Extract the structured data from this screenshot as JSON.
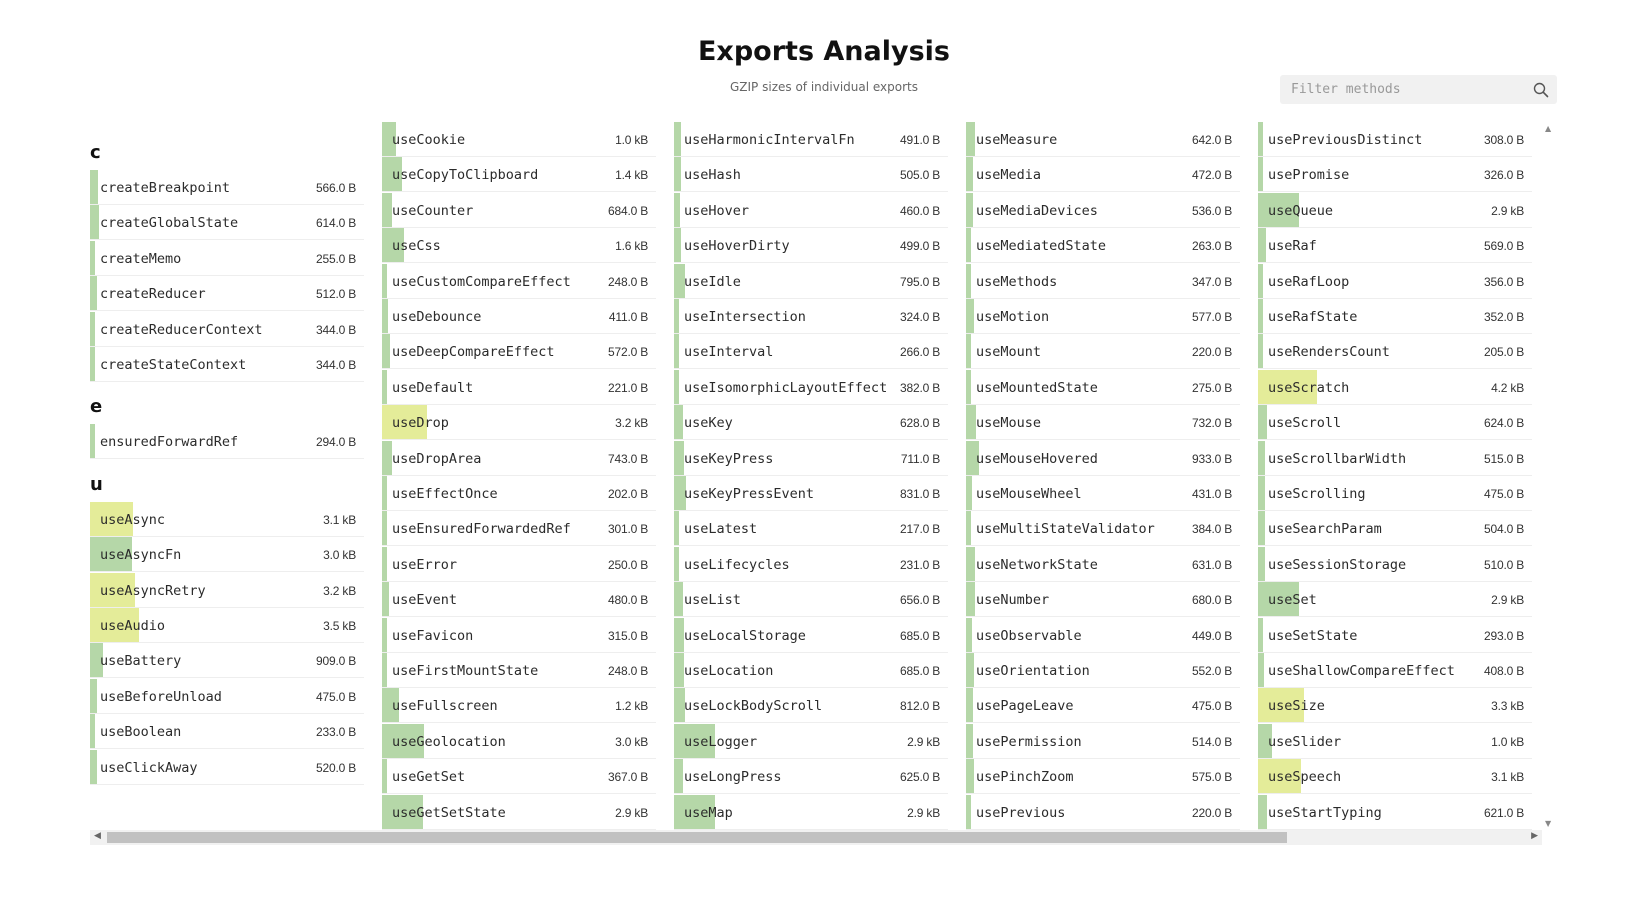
{
  "header": {
    "title": "Exports Analysis",
    "subtitle": "GZIP sizes of individual exports"
  },
  "filter": {
    "placeholder": "Filter methods"
  },
  "colors": {
    "bar_small": "#b5d7a8",
    "bar_large": "#e4ec99",
    "border": "#eeeeee"
  },
  "columns": [
    {
      "groups": [
        {
          "letter": "c",
          "items": [
            {
              "name": "createBreakpoint",
              "size": "566.0 B",
              "bytes": 566
            },
            {
              "name": "createGlobalState",
              "size": "614.0 B",
              "bytes": 614
            },
            {
              "name": "createMemo",
              "size": "255.0 B",
              "bytes": 255
            },
            {
              "name": "createReducer",
              "size": "512.0 B",
              "bytes": 512
            },
            {
              "name": "createReducerContext",
              "size": "344.0 B",
              "bytes": 344
            },
            {
              "name": "createStateContext",
              "size": "344.0 B",
              "bytes": 344
            }
          ]
        },
        {
          "letter": "e",
          "items": [
            {
              "name": "ensuredForwardRef",
              "size": "294.0 B",
              "bytes": 294
            }
          ]
        },
        {
          "letter": "u",
          "items": [
            {
              "name": "useAsync",
              "size": "3.1 kB",
              "bytes": 3100
            },
            {
              "name": "useAsyncFn",
              "size": "3.0 kB",
              "bytes": 3000
            },
            {
              "name": "useAsyncRetry",
              "size": "3.2 kB",
              "bytes": 3200
            },
            {
              "name": "useAudio",
              "size": "3.5 kB",
              "bytes": 3500
            },
            {
              "name": "useBattery",
              "size": "909.0 B",
              "bytes": 909
            },
            {
              "name": "useBeforeUnload",
              "size": "475.0 B",
              "bytes": 475
            },
            {
              "name": "useBoolean",
              "size": "233.0 B",
              "bytes": 233
            },
            {
              "name": "useClickAway",
              "size": "520.0 B",
              "bytes": 520
            }
          ]
        }
      ]
    },
    {
      "groups": [
        {
          "letter": "",
          "items": [
            {
              "name": "useCookie",
              "size": "1.0 kB",
              "bytes": 1000
            },
            {
              "name": "useCopyToClipboard",
              "size": "1.4 kB",
              "bytes": 1400
            },
            {
              "name": "useCounter",
              "size": "684.0 B",
              "bytes": 684
            },
            {
              "name": "useCss",
              "size": "1.6 kB",
              "bytes": 1600
            },
            {
              "name": "useCustomCompareEffect",
              "size": "248.0 B",
              "bytes": 248
            },
            {
              "name": "useDebounce",
              "size": "411.0 B",
              "bytes": 411
            },
            {
              "name": "useDeepCompareEffect",
              "size": "572.0 B",
              "bytes": 572
            },
            {
              "name": "useDefault",
              "size": "221.0 B",
              "bytes": 221
            },
            {
              "name": "useDrop",
              "size": "3.2 kB",
              "bytes": 3200
            },
            {
              "name": "useDropArea",
              "size": "743.0 B",
              "bytes": 743
            },
            {
              "name": "useEffectOnce",
              "size": "202.0 B",
              "bytes": 202
            },
            {
              "name": "useEnsuredForwardedRef",
              "size": "301.0 B",
              "bytes": 301
            },
            {
              "name": "useError",
              "size": "250.0 B",
              "bytes": 250
            },
            {
              "name": "useEvent",
              "size": "480.0 B",
              "bytes": 480
            },
            {
              "name": "useFavicon",
              "size": "315.0 B",
              "bytes": 315
            },
            {
              "name": "useFirstMountState",
              "size": "248.0 B",
              "bytes": 248
            },
            {
              "name": "useFullscreen",
              "size": "1.2 kB",
              "bytes": 1200
            },
            {
              "name": "useGeolocation",
              "size": "3.0 kB",
              "bytes": 3000
            },
            {
              "name": "useGetSet",
              "size": "367.0 B",
              "bytes": 367
            },
            {
              "name": "useGetSetState",
              "size": "2.9 kB",
              "bytes": 2900
            }
          ]
        }
      ]
    },
    {
      "groups": [
        {
          "letter": "",
          "items": [
            {
              "name": "useHarmonicIntervalFn",
              "size": "491.0 B",
              "bytes": 491
            },
            {
              "name": "useHash",
              "size": "505.0 B",
              "bytes": 505
            },
            {
              "name": "useHover",
              "size": "460.0 B",
              "bytes": 460
            },
            {
              "name": "useHoverDirty",
              "size": "499.0 B",
              "bytes": 499
            },
            {
              "name": "useIdle",
              "size": "795.0 B",
              "bytes": 795
            },
            {
              "name": "useIntersection",
              "size": "324.0 B",
              "bytes": 324
            },
            {
              "name": "useInterval",
              "size": "266.0 B",
              "bytes": 266
            },
            {
              "name": "useIsomorphicLayoutEffect",
              "size": "382.0 B",
              "bytes": 382
            },
            {
              "name": "useKey",
              "size": "628.0 B",
              "bytes": 628
            },
            {
              "name": "useKeyPress",
              "size": "711.0 B",
              "bytes": 711
            },
            {
              "name": "useKeyPressEvent",
              "size": "831.0 B",
              "bytes": 831
            },
            {
              "name": "useLatest",
              "size": "217.0 B",
              "bytes": 217
            },
            {
              "name": "useLifecycles",
              "size": "231.0 B",
              "bytes": 231
            },
            {
              "name": "useList",
              "size": "656.0 B",
              "bytes": 656
            },
            {
              "name": "useLocalStorage",
              "size": "685.0 B",
              "bytes": 685
            },
            {
              "name": "useLocation",
              "size": "685.0 B",
              "bytes": 685
            },
            {
              "name": "useLockBodyScroll",
              "size": "812.0 B",
              "bytes": 812
            },
            {
              "name": "useLogger",
              "size": "2.9 kB",
              "bytes": 2900
            },
            {
              "name": "useLongPress",
              "size": "625.0 B",
              "bytes": 625
            },
            {
              "name": "useMap",
              "size": "2.9 kB",
              "bytes": 2900
            }
          ]
        }
      ]
    },
    {
      "groups": [
        {
          "letter": "",
          "items": [
            {
              "name": "useMeasure",
              "size": "642.0 B",
              "bytes": 642
            },
            {
              "name": "useMedia",
              "size": "472.0 B",
              "bytes": 472
            },
            {
              "name": "useMediaDevices",
              "size": "536.0 B",
              "bytes": 536
            },
            {
              "name": "useMediatedState",
              "size": "263.0 B",
              "bytes": 263
            },
            {
              "name": "useMethods",
              "size": "347.0 B",
              "bytes": 347
            },
            {
              "name": "useMotion",
              "size": "577.0 B",
              "bytes": 577
            },
            {
              "name": "useMount",
              "size": "220.0 B",
              "bytes": 220
            },
            {
              "name": "useMountedState",
              "size": "275.0 B",
              "bytes": 275
            },
            {
              "name": "useMouse",
              "size": "732.0 B",
              "bytes": 732
            },
            {
              "name": "useMouseHovered",
              "size": "933.0 B",
              "bytes": 933
            },
            {
              "name": "useMouseWheel",
              "size": "431.0 B",
              "bytes": 431
            },
            {
              "name": "useMultiStateValidator",
              "size": "384.0 B",
              "bytes": 384
            },
            {
              "name": "useNetworkState",
              "size": "631.0 B",
              "bytes": 631
            },
            {
              "name": "useNumber",
              "size": "680.0 B",
              "bytes": 680
            },
            {
              "name": "useObservable",
              "size": "449.0 B",
              "bytes": 449
            },
            {
              "name": "useOrientation",
              "size": "552.0 B",
              "bytes": 552
            },
            {
              "name": "usePageLeave",
              "size": "475.0 B",
              "bytes": 475
            },
            {
              "name": "usePermission",
              "size": "514.0 B",
              "bytes": 514
            },
            {
              "name": "usePinchZoom",
              "size": "575.0 B",
              "bytes": 575
            },
            {
              "name": "usePrevious",
              "size": "220.0 B",
              "bytes": 220
            }
          ]
        }
      ]
    },
    {
      "groups": [
        {
          "letter": "",
          "items": [
            {
              "name": "usePreviousDistinct",
              "size": "308.0 B",
              "bytes": 308
            },
            {
              "name": "usePromise",
              "size": "326.0 B",
              "bytes": 326
            },
            {
              "name": "useQueue",
              "size": "2.9 kB",
              "bytes": 2900
            },
            {
              "name": "useRaf",
              "size": "569.0 B",
              "bytes": 569
            },
            {
              "name": "useRafLoop",
              "size": "356.0 B",
              "bytes": 356
            },
            {
              "name": "useRafState",
              "size": "352.0 B",
              "bytes": 352
            },
            {
              "name": "useRendersCount",
              "size": "205.0 B",
              "bytes": 205
            },
            {
              "name": "useScratch",
              "size": "4.2 kB",
              "bytes": 4200
            },
            {
              "name": "useScroll",
              "size": "624.0 B",
              "bytes": 624
            },
            {
              "name": "useScrollbarWidth",
              "size": "515.0 B",
              "bytes": 515
            },
            {
              "name": "useScrolling",
              "size": "475.0 B",
              "bytes": 475
            },
            {
              "name": "useSearchParam",
              "size": "504.0 B",
              "bytes": 504
            },
            {
              "name": "useSessionStorage",
              "size": "510.0 B",
              "bytes": 510
            },
            {
              "name": "useSet",
              "size": "2.9 kB",
              "bytes": 2900
            },
            {
              "name": "useSetState",
              "size": "293.0 B",
              "bytes": 293
            },
            {
              "name": "useShallowCompareEffect",
              "size": "408.0 B",
              "bytes": 408
            },
            {
              "name": "useSize",
              "size": "3.3 kB",
              "bytes": 3300
            },
            {
              "name": "useSlider",
              "size": "1.0 kB",
              "bytes": 1000
            },
            {
              "name": "useSpeech",
              "size": "3.1 kB",
              "bytes": 3100
            },
            {
              "name": "useStartTyping",
              "size": "621.0 B",
              "bytes": 621
            }
          ]
        }
      ]
    }
  ]
}
